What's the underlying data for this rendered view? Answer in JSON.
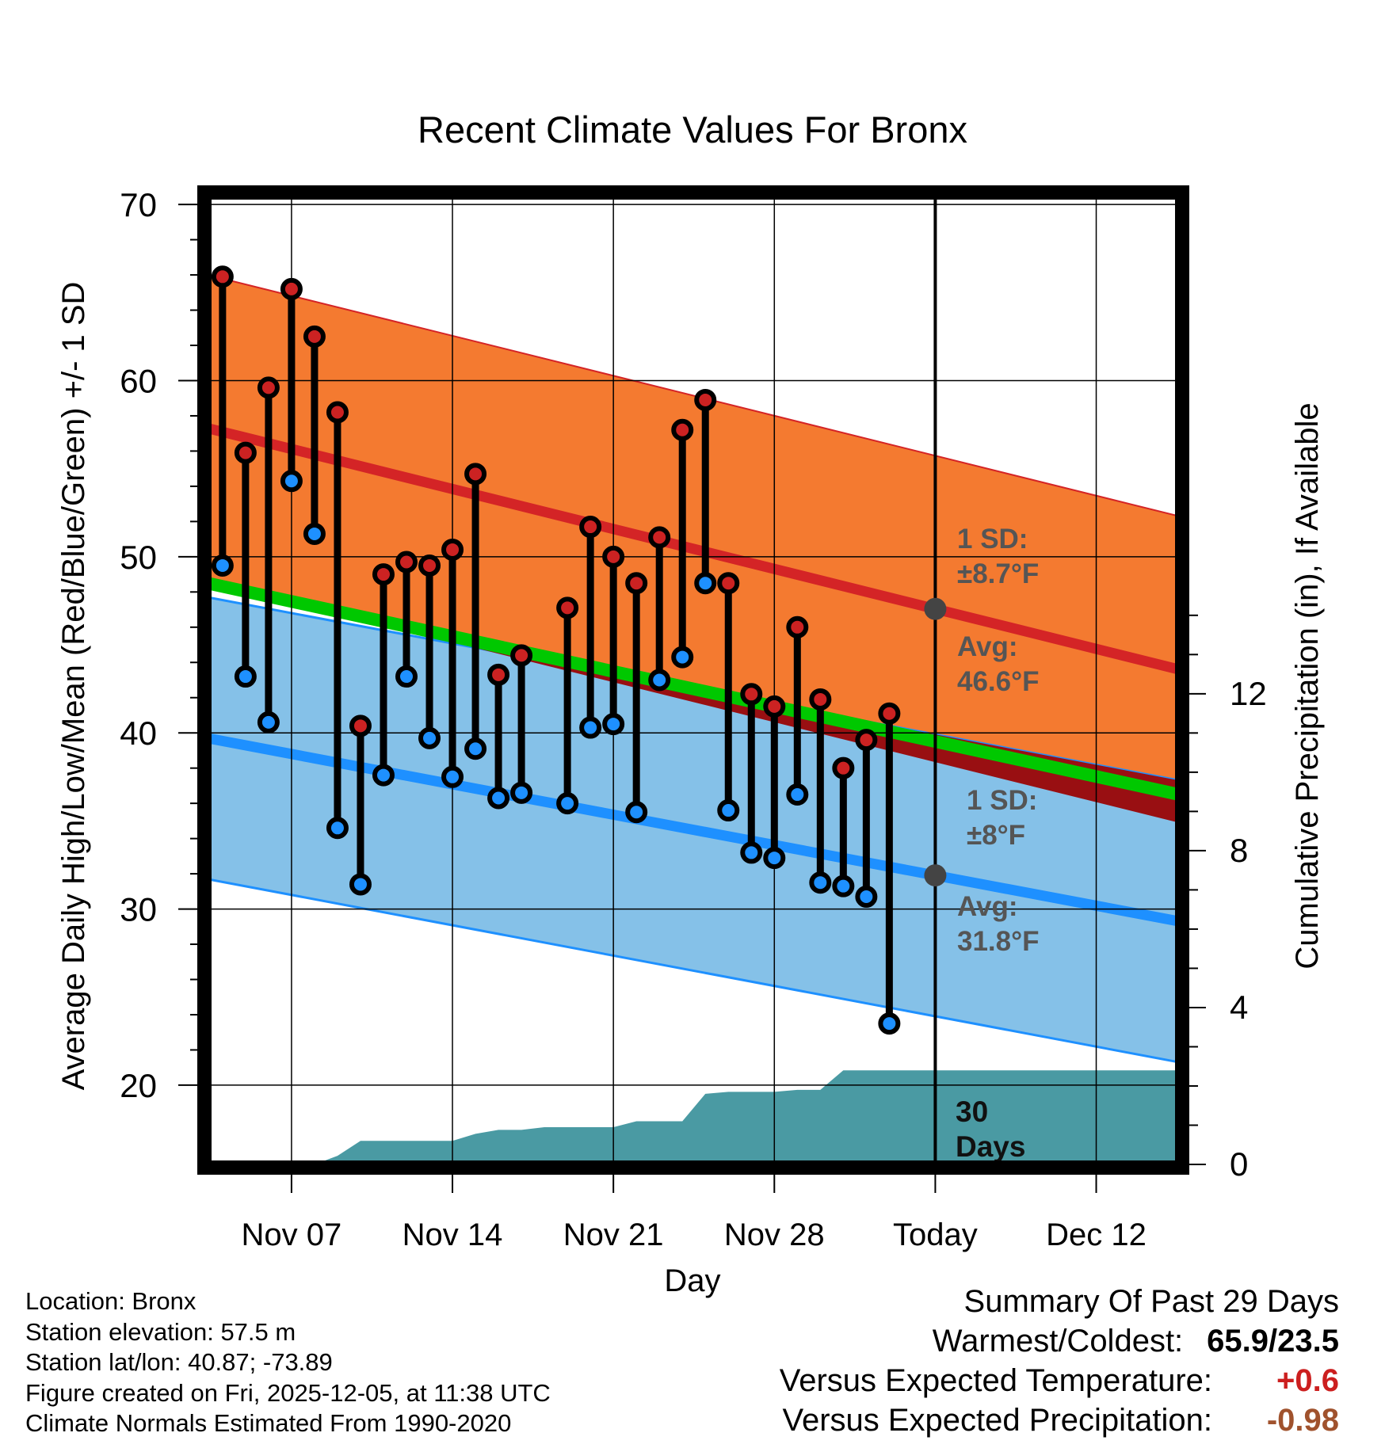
{
  "chart_data": {
    "type": "line",
    "title": "Recent Climate Values For Bronx",
    "xlabel": "Day",
    "ylabel": "Average Daily High/Low/Mean (Red/Blue/Green) +/- 1 SD",
    "ylabel_right": "Cumulative Precipitation (in), If Available",
    "ylim": [
      15.5,
      70.5
    ],
    "ylim_right": [
      0,
      24.7
    ],
    "xlim": [
      0.35,
      42.6
    ],
    "yticks": [
      20,
      30,
      40,
      50,
      60,
      70
    ],
    "yticks_right": [
      0,
      4,
      8,
      12
    ],
    "xticks": [
      {
        "day": 4,
        "label": "Nov 07"
      },
      {
        "day": 11,
        "label": "Nov 14"
      },
      {
        "day": 18,
        "label": "Nov 21"
      },
      {
        "day": 25,
        "label": "Nov 28"
      },
      {
        "day": 32,
        "label": "Today"
      },
      {
        "day": 39,
        "label": "Dec 12"
      }
    ],
    "today_day": 32,
    "normal_high": {
      "start": 57.3,
      "end": 43.6,
      "sd": 8.7
    },
    "normal_low": {
      "start": 39.7,
      "end": 29.3,
      "sd": 8.0
    },
    "normal_mean": {
      "start": 48.5,
      "end": 36.5
    },
    "series": [
      {
        "name": "Daily High",
        "color": "#cc2222",
        "values": [
          65.9,
          55.9,
          59.6,
          65.2,
          62.5,
          58.2,
          40.4,
          49.0,
          49.7,
          49.5,
          50.4,
          54.7,
          43.3,
          44.4,
          null,
          47.1,
          51.7,
          50.0,
          48.5,
          51.1,
          57.2,
          58.9,
          48.5,
          42.2,
          41.5,
          46.0,
          41.9,
          38.0,
          39.6,
          41.1
        ]
      },
      {
        "name": "Daily Low",
        "color": "#1e90ff",
        "values": [
          49.5,
          43.2,
          40.6,
          54.3,
          51.3,
          34.6,
          31.4,
          37.6,
          43.2,
          39.7,
          37.5,
          39.1,
          36.3,
          36.6,
          null,
          36.0,
          40.3,
          40.5,
          35.5,
          43.0,
          44.3,
          48.5,
          35.6,
          33.2,
          32.9,
          36.5,
          31.5,
          31.3,
          30.7,
          23.5
        ]
      }
    ],
    "precip": {
      "name": "Cumulative Precipitation",
      "color": "#4a9aa3",
      "days": [
        4,
        5,
        6,
        7,
        8,
        9,
        10,
        11,
        12,
        13,
        14,
        15,
        16,
        17,
        18,
        19,
        20,
        21,
        22,
        23,
        24,
        25,
        26,
        27,
        28,
        29,
        30,
        31,
        32,
        42.6
      ],
      "values": [
        0,
        0,
        0.22,
        0.6,
        0.6,
        0.6,
        0.6,
        0.6,
        0.78,
        0.88,
        0.88,
        0.95,
        0.95,
        0.95,
        0.95,
        1.1,
        1.1,
        1.1,
        1.8,
        1.85,
        1.85,
        1.85,
        1.9,
        1.9,
        2.4,
        2.4,
        2.4,
        2.4,
        2.4,
        2.4
      ]
    },
    "annotations": {
      "high_sd_label": "1 SD:",
      "high_sd_value": "±8.7°F",
      "high_avg_label": "Avg:",
      "high_avg_value": "46.6°F",
      "low_sd_label": "1 SD:",
      "low_sd_value": "±8°F",
      "low_avg_label": "Avg:",
      "low_avg_value": "31.8°F",
      "days_count": "30",
      "days_label": "Days"
    }
  },
  "info": {
    "location": "Location: Bronx",
    "elevation": "Station elevation: 57.5 m",
    "latlon": "Station lat/lon: 40.87; -73.89",
    "created": "Figure created on Fri, 2025-12-05, at 11:38 UTC",
    "normals": "Climate Normals Estimated From 1990-2020"
  },
  "summary": {
    "title": "Summary Of Past 29 Days",
    "warmest_coldest_label": "Warmest/Coldest:",
    "warmest_coldest_value": "65.9/23.5",
    "temp_label": "Versus Expected Temperature:",
    "temp_value": "+0.6",
    "precip_label": "Versus Expected Precipitation:",
    "precip_value": "-0.98"
  },
  "colors": {
    "high_band": "#f47a30",
    "high_line": "#d42426",
    "low_band": "#85c1e8",
    "low_line": "#1e90ff",
    "mean_line": "#00c800",
    "overlap": "#990f12",
    "precip": "#4a9aa3",
    "high_dot": "#cc2222",
    "low_dot": "#1e90ff",
    "marker": "#444444",
    "annotation": "#555555"
  }
}
